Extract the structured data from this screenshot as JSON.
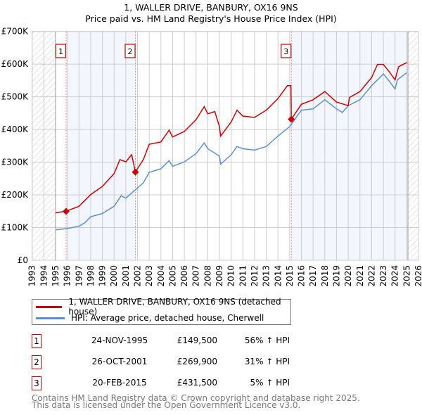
{
  "chart_data": {
    "type": "line",
    "title": "1, WALLER DRIVE, BANBURY, OX16 9NS",
    "subtitle": "Price paid vs. HM Land Registry's House Price Index (HPI)",
    "xlim": [
      1993,
      2026
    ],
    "ylim": [
      0,
      700000
    ],
    "y_ticks": [
      {
        "v": 0,
        "label": "£0"
      },
      {
        "v": 100000,
        "label": "£100K"
      },
      {
        "v": 200000,
        "label": "£200K"
      },
      {
        "v": 300000,
        "label": "£300K"
      },
      {
        "v": 400000,
        "label": "£400K"
      },
      {
        "v": 500000,
        "label": "£500K"
      },
      {
        "v": 600000,
        "label": "£600K"
      },
      {
        "v": 700000,
        "label": "£700K"
      }
    ],
    "x_ticks": [
      "1993",
      "1994",
      "1995",
      "1996",
      "1997",
      "1998",
      "1999",
      "2000",
      "2001",
      "2002",
      "2003",
      "2004",
      "2005",
      "2006",
      "2007",
      "2008",
      "2009",
      "2010",
      "2011",
      "2012",
      "2013",
      "2014",
      "2015",
      "2016",
      "2017",
      "2018",
      "2019",
      "2020",
      "2021",
      "2022",
      "2023",
      "2024",
      "2025",
      "2026"
    ],
    "grid": true,
    "hatched_ranges": [
      [
        1993,
        1995
      ],
      [
        2025.1,
        2026
      ]
    ],
    "shaded_ranges": [
      [
        1995.9,
        2001.82
      ],
      [
        2015.14,
        2025.1
      ]
    ],
    "series": [
      {
        "name": "1, WALLER DRIVE, BANBURY, OX16 9NS (detached house)",
        "color": "#cc0000",
        "x": [
          1995,
          1995.9,
          1997,
          1998,
          1999,
          2000,
          2000.5,
          2001,
          2001.5,
          2001.82,
          2002.5,
          2003,
          2004,
          2004.7,
          2005,
          2006,
          2007,
          2007.7,
          2008,
          2008.6,
          2009,
          2009.1,
          2010,
          2010.5,
          2011,
          2012,
          2013,
          2014,
          2014.8,
          2015.1,
          2015.14,
          2016,
          2017,
          2018,
          2019,
          2020,
          2020.1,
          2021,
          2022,
          2022.5,
          2023,
          2023.5,
          2024,
          2024.3,
          2025
        ],
        "y": [
          145000,
          150000,
          165000,
          201000,
          226000,
          265000,
          308000,
          301000,
          323000,
          270000,
          308000,
          355000,
          362000,
          398000,
          377000,
          394000,
          430000,
          470000,
          448000,
          455000,
          409000,
          380000,
          423000,
          459000,
          441000,
          437000,
          459000,
          495000,
          534000,
          534000,
          431500,
          477000,
          491000,
          516000,
          484000,
          473000,
          498000,
          516000,
          559000,
          599000,
          599000,
          577000,
          552000,
          592000,
          605000
        ]
      },
      {
        "name": "HPI: Average price, detached house, Cherwell",
        "color": "#5b8fd4",
        "x": [
          1995,
          1996,
          1997,
          1997.5,
          1998,
          1999,
          2000,
          2000.6,
          2001,
          2001.8,
          2002.5,
          2003,
          2004,
          2004.7,
          2005,
          2006,
          2007,
          2007.7,
          2008,
          2009,
          2009.1,
          2010,
          2010.5,
          2011,
          2012,
          2013,
          2014,
          2015,
          2016,
          2017,
          2018,
          2019,
          2019.5,
          2020,
          2021,
          2022,
          2023,
          2023.5,
          2024,
          2024.2,
          2025
        ],
        "y": [
          93000,
          97000,
          104000,
          115000,
          133000,
          143000,
          165000,
          197000,
          190000,
          215000,
          237000,
          269000,
          280000,
          305000,
          287000,
          301000,
          326000,
          359000,
          341000,
          319000,
          294000,
          323000,
          348000,
          341000,
          337000,
          348000,
          380000,
          409000,
          459000,
          463000,
          491000,
          463000,
          452000,
          473000,
          491000,
          534000,
          570000,
          548000,
          524000,
          552000,
          574000
        ]
      }
    ],
    "sales": [
      {
        "n": "1",
        "x": 1995.9,
        "y": 149500
      },
      {
        "n": "2",
        "x": 2001.82,
        "y": 269900
      },
      {
        "n": "3",
        "x": 2015.14,
        "y": 431500
      }
    ]
  },
  "legend": [
    "1, WALLER DRIVE, BANBURY, OX16 9NS (detached house)",
    "HPI: Average price, detached house, Cherwell"
  ],
  "colors": {
    "property": "#cc0000",
    "hpi": "#5b8fd4"
  },
  "transactions": [
    {
      "n": "1",
      "date": "24-NOV-1995",
      "price": "£149,500",
      "hpi": "56% ↑ HPI"
    },
    {
      "n": "2",
      "date": "26-OCT-2001",
      "price": "£269,900",
      "hpi": "31% ↑ HPI"
    },
    {
      "n": "3",
      "date": "20-FEB-2015",
      "price": "£431,500",
      "hpi": "5% ↑ HPI"
    }
  ],
  "footer": [
    "Contains HM Land Registry data © Crown copyright and database right 2025.",
    "This data is licensed under the Open Government Licence v3.0."
  ]
}
